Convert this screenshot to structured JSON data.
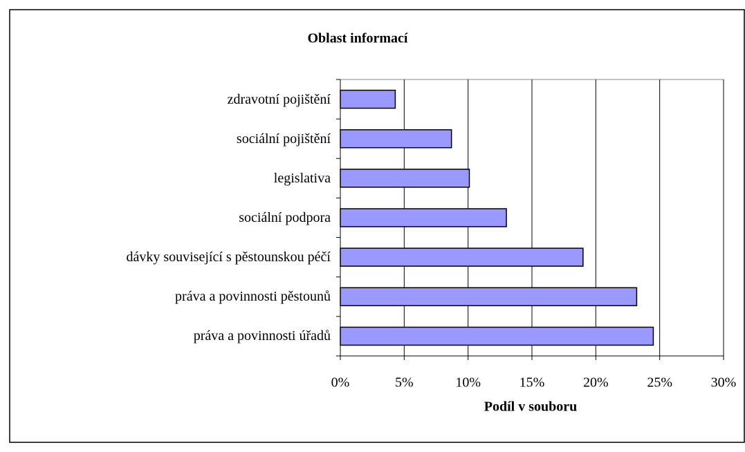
{
  "chart_data": {
    "type": "barh",
    "title": "Oblast informací",
    "xlabel": "Podíl v souboru",
    "categories": [
      "zdravotní pojištění",
      "sociální pojištění",
      "legislativa",
      "sociální podpora",
      "dávky související s pěstounskou péčí",
      "práva a povinnosti pěstounů",
      "práva a povinnosti úřadů"
    ],
    "values": [
      4.3,
      8.7,
      10.1,
      13.0,
      19.0,
      23.2,
      24.5
    ],
    "color": "#9999ff",
    "xlim": [
      0,
      30
    ],
    "xticks": [
      {
        "value": 0,
        "label": "0%"
      },
      {
        "value": 5,
        "label": "5%"
      },
      {
        "value": 10,
        "label": "10%"
      },
      {
        "value": 15,
        "label": "15%"
      },
      {
        "value": 20,
        "label": "20%"
      },
      {
        "value": 25,
        "label": "25%"
      },
      {
        "value": 30,
        "label": "30%"
      }
    ],
    "grid": true
  }
}
